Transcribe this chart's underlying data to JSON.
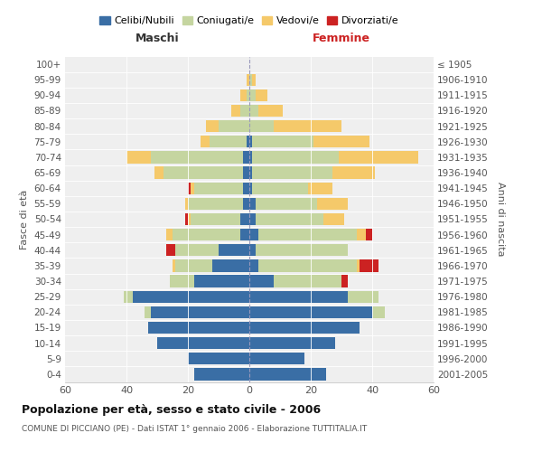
{
  "age_groups": [
    "0-4",
    "5-9",
    "10-14",
    "15-19",
    "20-24",
    "25-29",
    "30-34",
    "35-39",
    "40-44",
    "45-49",
    "50-54",
    "55-59",
    "60-64",
    "65-69",
    "70-74",
    "75-79",
    "80-84",
    "85-89",
    "90-94",
    "95-99",
    "100+"
  ],
  "birth_years": [
    "2001-2005",
    "1996-2000",
    "1991-1995",
    "1986-1990",
    "1981-1985",
    "1976-1980",
    "1971-1975",
    "1966-1970",
    "1961-1965",
    "1956-1960",
    "1951-1955",
    "1946-1950",
    "1941-1945",
    "1936-1940",
    "1931-1935",
    "1926-1930",
    "1921-1925",
    "1916-1920",
    "1911-1915",
    "1906-1910",
    "≤ 1905"
  ],
  "colors": {
    "celibi": "#3a6ea5",
    "coniugati": "#c5d5a0",
    "vedovi": "#f5c96a",
    "divorziati": "#cc2222"
  },
  "males": {
    "celibi": [
      18,
      20,
      30,
      33,
      32,
      38,
      18,
      12,
      10,
      3,
      3,
      2,
      2,
      2,
      2,
      1,
      0,
      0,
      0,
      0,
      0
    ],
    "coniugati": [
      0,
      0,
      0,
      0,
      2,
      3,
      8,
      12,
      14,
      22,
      16,
      18,
      16,
      26,
      30,
      12,
      10,
      3,
      1,
      0,
      0
    ],
    "vedovi": [
      0,
      0,
      0,
      0,
      0,
      0,
      0,
      1,
      0,
      2,
      1,
      1,
      1,
      3,
      8,
      3,
      4,
      3,
      2,
      1,
      0
    ],
    "divorziati": [
      0,
      0,
      0,
      0,
      0,
      0,
      0,
      0,
      3,
      0,
      1,
      0,
      1,
      0,
      0,
      0,
      0,
      0,
      0,
      0,
      0
    ]
  },
  "females": {
    "celibi": [
      25,
      18,
      28,
      36,
      40,
      32,
      8,
      3,
      2,
      3,
      2,
      2,
      1,
      1,
      1,
      1,
      0,
      0,
      0,
      0,
      0
    ],
    "coniugati": [
      0,
      0,
      0,
      0,
      4,
      10,
      22,
      32,
      30,
      32,
      22,
      20,
      18,
      26,
      28,
      20,
      8,
      3,
      2,
      1,
      0
    ],
    "vedovi": [
      0,
      0,
      0,
      0,
      0,
      0,
      0,
      1,
      0,
      3,
      7,
      10,
      8,
      14,
      26,
      18,
      22,
      8,
      4,
      1,
      0
    ],
    "divorziati": [
      0,
      0,
      0,
      0,
      0,
      0,
      2,
      6,
      0,
      2,
      0,
      0,
      0,
      0,
      0,
      0,
      0,
      0,
      0,
      0,
      0
    ]
  },
  "title": "Popolazione per età, sesso e stato civile - 2006",
  "subtitle": "COMUNE DI PICCIANO (PE) - Dati ISTAT 1° gennaio 2006 - Elaborazione TUTTITALIA.IT",
  "xlabel_left": "Maschi",
  "xlabel_right": "Femmine",
  "ylabel_left": "Fasce di età",
  "ylabel_right": "Anni di nascita",
  "xlim": 60,
  "legend_labels": [
    "Celibi/Nubili",
    "Coniugati/e",
    "Vedovi/e",
    "Divorziati/e"
  ],
  "background_color": "#efefef"
}
